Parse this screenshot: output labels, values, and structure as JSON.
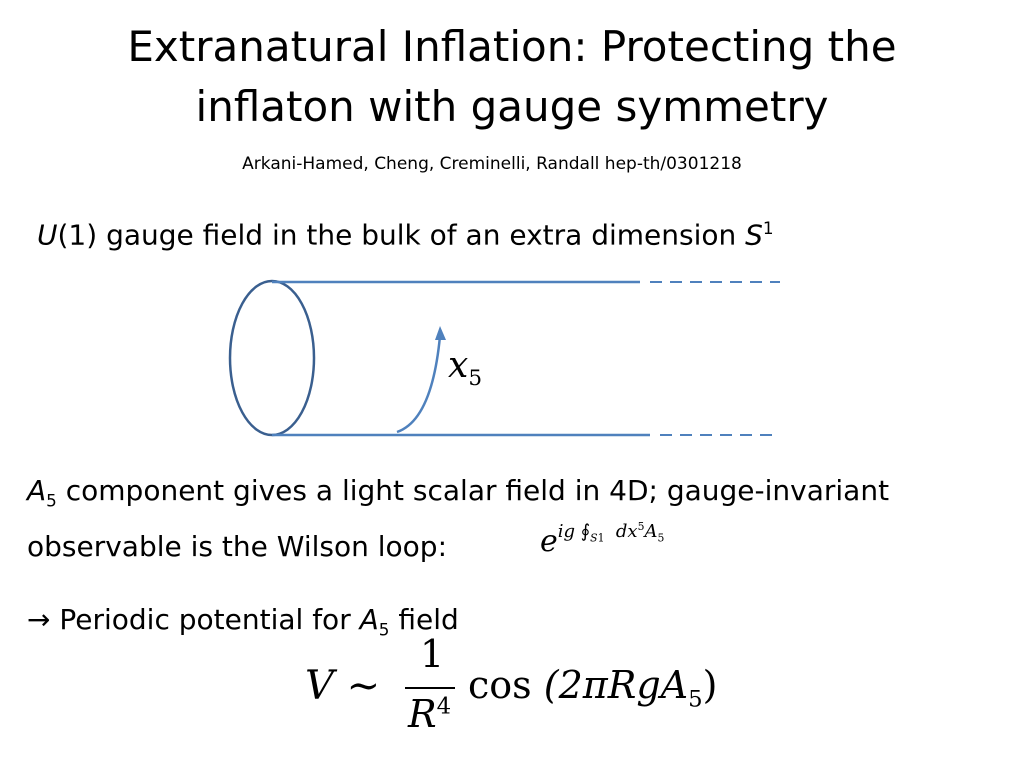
{
  "slide": {
    "title": [
      "Extranatural Inflation: Protecting the",
      "inflaton with gauge symmetry"
    ],
    "authors": "Arkani-Hamed, Cheng, Creminelli, Randall hep-th/0301218",
    "bullet1": [
      "U",
      "(1) gauge field in the bulk of an extra dimension ",
      "S",
      "1"
    ],
    "diagram_label": [
      "x",
      "5"
    ],
    "bullet2": [
      "A",
      "5",
      " component gives a light scalar field in 4D; gauge-invariant",
      "observable is the Wilson loop:"
    ],
    "wilson_loop": [
      "e",
      "ig",
      "∮",
      "S",
      "1",
      "dx",
      "5",
      "A",
      "5"
    ],
    "bullet3": [
      "→",
      " Periodic potential for ",
      "A",
      "5",
      " field"
    ],
    "potential": [
      "V",
      "∼",
      "1",
      "R",
      "4",
      "cos",
      "(2πRgA",
      "5",
      ")"
    ]
  }
}
